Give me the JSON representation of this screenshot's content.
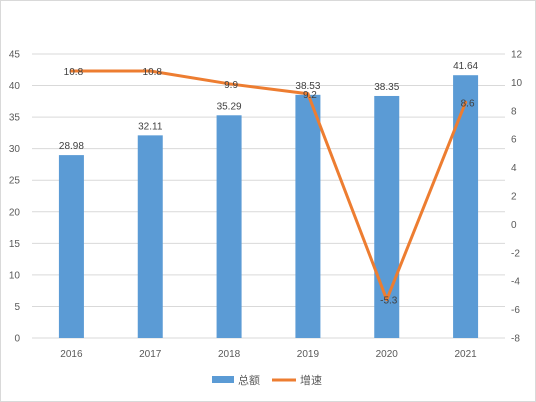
{
  "chart_data": {
    "type": "bar",
    "categories": [
      "2016",
      "2017",
      "2018",
      "2019",
      "2020",
      "2021"
    ],
    "series": [
      {
        "name": "总额",
        "type": "bar",
        "axis": "left",
        "color": "#5b9bd5",
        "values": [
          28.98,
          32.11,
          35.29,
          38.53,
          38.35,
          41.64
        ],
        "labels": [
          "28.98",
          "32.11",
          "35.29",
          "38.53",
          "38.35",
          "41.64"
        ]
      },
      {
        "name": "增速",
        "type": "line",
        "axis": "right",
        "color": "#ed7d31",
        "values": [
          10.8,
          10.8,
          9.9,
          9.2,
          -5.3,
          8.6
        ],
        "labels": [
          "10.8",
          "10.8",
          "9.9",
          "9.2",
          "-5.3",
          "8.6"
        ]
      }
    ],
    "y_left": {
      "min": 0,
      "max": 45,
      "step": 5,
      "ticks": [
        "0",
        "5",
        "10",
        "15",
        "20",
        "25",
        "30",
        "35",
        "40",
        "45"
      ]
    },
    "y_right": {
      "min": -8,
      "max": 12,
      "step": 2,
      "ticks": [
        "-8",
        "-6",
        "-4",
        "-2",
        "0",
        "2",
        "4",
        "6",
        "8",
        "10",
        "12"
      ]
    },
    "grid": true,
    "grid_color": "#d9d9d9",
    "legend": {
      "position": "bottom"
    }
  }
}
